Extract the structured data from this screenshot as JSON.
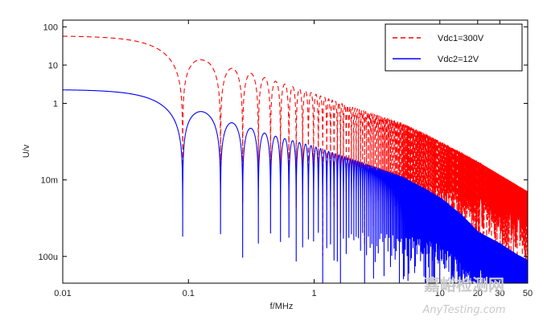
{
  "chart_data": {
    "type": "line",
    "xlabel": "f/MHz",
    "ylabel": "U/v",
    "x_scale": "log",
    "y_scale": "log",
    "xlim": [
      0.01,
      50
    ],
    "ylim": [
      2e-05,
      150
    ],
    "x_ticks": [
      {
        "value": 0.01,
        "label": "0.01"
      },
      {
        "value": 0.1,
        "label": "0.1"
      },
      {
        "value": 1,
        "label": "1"
      },
      {
        "value": 10,
        "label": "10"
      },
      {
        "value": 20,
        "label": "20"
      },
      {
        "value": 30,
        "label": "30"
      },
      {
        "value": 50,
        "label": "50"
      }
    ],
    "y_ticks": [
      {
        "value": 100,
        "label": "100"
      },
      {
        "value": 10,
        "label": "10"
      },
      {
        "value": 1,
        "label": "1"
      },
      {
        "value": 0.01,
        "label": "10m"
      },
      {
        "value": 0.0001,
        "label": "100u"
      }
    ],
    "grid": false,
    "legend_position": "top-right",
    "series": [
      {
        "name": "Vdc1=300V",
        "color": "#ff0000",
        "style": "dashed",
        "low_freq_level": 58,
        "first_null_mhz": 0.09,
        "lobe_peaks": [
          {
            "x": 0.135,
            "y": 13
          },
          {
            "x": 0.23,
            "y": 8
          },
          {
            "x": 0.32,
            "y": 6
          },
          {
            "x": 0.42,
            "y": 4.5
          },
          {
            "x": 0.52,
            "y": 3.6
          },
          {
            "x": 1.0,
            "y": 1.8
          },
          {
            "x": 2.0,
            "y": 0.8
          },
          {
            "x": 5.0,
            "y": 0.3
          },
          {
            "x": 10.0,
            "y": 0.1
          },
          {
            "x": 20.0,
            "y": 0.03
          },
          {
            "x": 50.0,
            "y": 0.005
          }
        ]
      },
      {
        "name": "Vdc2=12V",
        "color": "#0000ff",
        "style": "solid",
        "low_freq_level": 2.3,
        "first_null_mhz": 0.09,
        "lobe_peaks": [
          {
            "x": 0.145,
            "y": 0.52
          },
          {
            "x": 0.23,
            "y": 0.3
          },
          {
            "x": 0.32,
            "y": 0.22
          },
          {
            "x": 0.42,
            "y": 0.16
          },
          {
            "x": 1.0,
            "y": 0.075
          },
          {
            "x": 2.0,
            "y": 0.035
          },
          {
            "x": 5.0,
            "y": 0.012
          },
          {
            "x": 10.0,
            "y": 0.0035
          },
          {
            "x": 15.0,
            "y": 0.0012
          },
          {
            "x": 20.0,
            "y": 0.00045
          },
          {
            "x": 30.0,
            "y": 0.00022
          },
          {
            "x": 40.0,
            "y": 0.00012
          },
          {
            "x": 50.0,
            "y": 8e-05
          }
        ]
      }
    ]
  },
  "watermark": {
    "cn": "嘉峪检测网",
    "en": "AnyTesting.com"
  }
}
